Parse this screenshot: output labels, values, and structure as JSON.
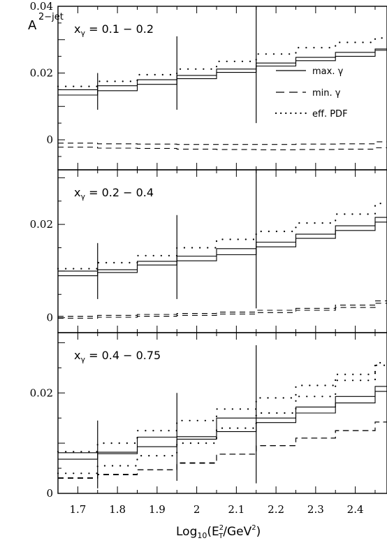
{
  "chart_data": {
    "type": "line",
    "ylabel_main": "A",
    "ylabel_sup": "2−jet",
    "xlabel_parts": {
      "log": "Log",
      "sub": "10",
      "open": "(E",
      "sup1": "2",
      "sub2": "T",
      "mid": "/GeV",
      "sup2": "2",
      "close": ")"
    },
    "x_ticks": [
      "1.7",
      "1.8",
      "1.9",
      "2",
      "2.1",
      "2.2",
      "2.3",
      "2.4"
    ],
    "xlim": [
      1.65,
      2.48
    ],
    "bins": [
      1.65,
      1.75,
      1.85,
      1.95,
      2.05,
      2.15,
      2.25,
      2.35,
      2.45,
      2.48
    ],
    "legend": [
      {
        "label": "max. γ",
        "style": "solid"
      },
      {
        "label": "min. γ",
        "style": "dashed"
      },
      {
        "label": "eff. PDF",
        "style": "dotted"
      }
    ],
    "panels": [
      {
        "label": "xγ = 0.1 − 0.2",
        "label_parts": {
          "x": "x",
          "sub": "γ",
          "rest": " = 0.1 − 0.2"
        },
        "ylim": [
          -0.009,
          0.04
        ],
        "y_ticks": [
          {
            "v": 0.04,
            "t": "0.04"
          },
          {
            "v": 0.02,
            "t": "0.02"
          },
          {
            "v": 0,
            "t": "0"
          }
        ],
        "band_lo": [
          0.0134,
          0.0147,
          0.0166,
          0.0183,
          0.0202,
          0.0221,
          0.0237,
          0.025,
          0.0268,
          0.0268
        ],
        "band_hi": [
          0.015,
          0.0162,
          0.018,
          0.0193,
          0.0212,
          0.023,
          0.0247,
          0.0262,
          0.0272,
          0.0272
        ],
        "dashed": [
          -0.001,
          -0.0012,
          -0.0013,
          -0.0014,
          -0.0014,
          -0.0014,
          -0.0013,
          -0.0012,
          -0.0006,
          0.0
        ],
        "dashed_lo": [
          -0.0022,
          -0.0025,
          -0.0026,
          -0.0028,
          -0.0029,
          -0.003,
          -0.0029,
          -0.0028,
          -0.0024,
          -0.0024
        ],
        "dotted": [
          0.016,
          0.0175,
          0.0195,
          0.0212,
          0.0235,
          0.0257,
          0.0276,
          0.0292,
          0.0305,
          0.0305
        ],
        "error_bars": [
          {
            "x": 1.75,
            "lo": 0.009,
            "hi": 0.02
          },
          {
            "x": 1.95,
            "lo": 0.009,
            "hi": 0.031
          },
          {
            "x": 2.15,
            "lo": 0.005,
            "hi": 0.04
          }
        ]
      },
      {
        "label": "xγ = 0.2 − 0.4",
        "label_parts": {
          "x": "x",
          "sub": "γ",
          "rest": " = 0.2 − 0.4"
        },
        "ylim": [
          -0.0032,
          0.0317
        ],
        "y_ticks": [
          {
            "v": 0.02,
            "t": "0.02"
          },
          {
            "v": 0,
            "t": "0"
          }
        ],
        "band_lo": [
          0.009,
          0.0097,
          0.0113,
          0.0122,
          0.0135,
          0.0152,
          0.017,
          0.0187,
          0.0205,
          0.0205
        ],
        "band_hi": [
          0.01,
          0.0103,
          0.0121,
          0.0132,
          0.0148,
          0.0162,
          0.0179,
          0.0197,
          0.0215,
          0.0215
        ],
        "dashed": [
          0.0003,
          0.0005,
          0.0007,
          0.0009,
          0.0012,
          0.0016,
          0.002,
          0.0027,
          0.0036,
          0.0036
        ],
        "dashed_lo": [
          -0.0001,
          0.0001,
          0.0003,
          0.0005,
          0.0008,
          0.0011,
          0.0016,
          0.0022,
          0.0031,
          0.0031
        ],
        "dotted": [
          0.0105,
          0.0118,
          0.0133,
          0.015,
          0.0168,
          0.0185,
          0.0203,
          0.0222,
          0.0245,
          0.0245
        ],
        "error_bars": [
          {
            "x": 1.75,
            "lo": 0.004,
            "hi": 0.016
          },
          {
            "x": 1.95,
            "lo": 0.004,
            "hi": 0.022
          },
          {
            "x": 2.15,
            "lo": 0.002,
            "hi": 0.0317
          }
        ]
      },
      {
        "label": "xγ = 0.4 − 0.75",
        "label_parts": {
          "x": "x",
          "sub": "γ",
          "rest": " = 0.4 − 0.75"
        },
        "ylim": [
          0,
          0.032
        ],
        "y_ticks": [
          {
            "v": 0.02,
            "t": "0.02"
          },
          {
            "v": 0,
            "t": "0"
          }
        ],
        "band_lo": [
          0.0068,
          0.0079,
          0.0093,
          0.0108,
          0.0123,
          0.0141,
          0.016,
          0.018,
          0.0203,
          0.0203
        ],
        "band_hi": [
          0.0081,
          0.0082,
          0.0112,
          0.0113,
          0.015,
          0.015,
          0.0172,
          0.0193,
          0.0213,
          0.0213
        ],
        "dashed": [
          0.003,
          0.0037,
          0.0047,
          0.006,
          0.0078,
          0.0095,
          0.011,
          0.0125,
          0.0142,
          0.0142
        ],
        "dashed_lo": [
          0.0031,
          0.0038,
          0.0047,
          0.0061,
          0.0078,
          0.0095,
          0.011,
          0.0125,
          0.0142,
          0.0142
        ],
        "dotted": [
          0.004,
          0.0055,
          0.0075,
          0.01,
          0.013,
          0.016,
          0.0193,
          0.0225,
          0.0255,
          0.0255
        ],
        "dotted_upper": [
          0.0083,
          0.01,
          0.0125,
          0.0145,
          0.0168,
          0.019,
          0.0215,
          0.0237,
          0.026,
          0.026
        ],
        "error_bars": [
          {
            "x": 1.75,
            "lo": 0.001,
            "hi": 0.0145
          },
          {
            "x": 1.95,
            "lo": 0.0025,
            "hi": 0.02
          },
          {
            "x": 2.15,
            "lo": 0.002,
            "hi": 0.0295
          }
        ]
      }
    ]
  }
}
